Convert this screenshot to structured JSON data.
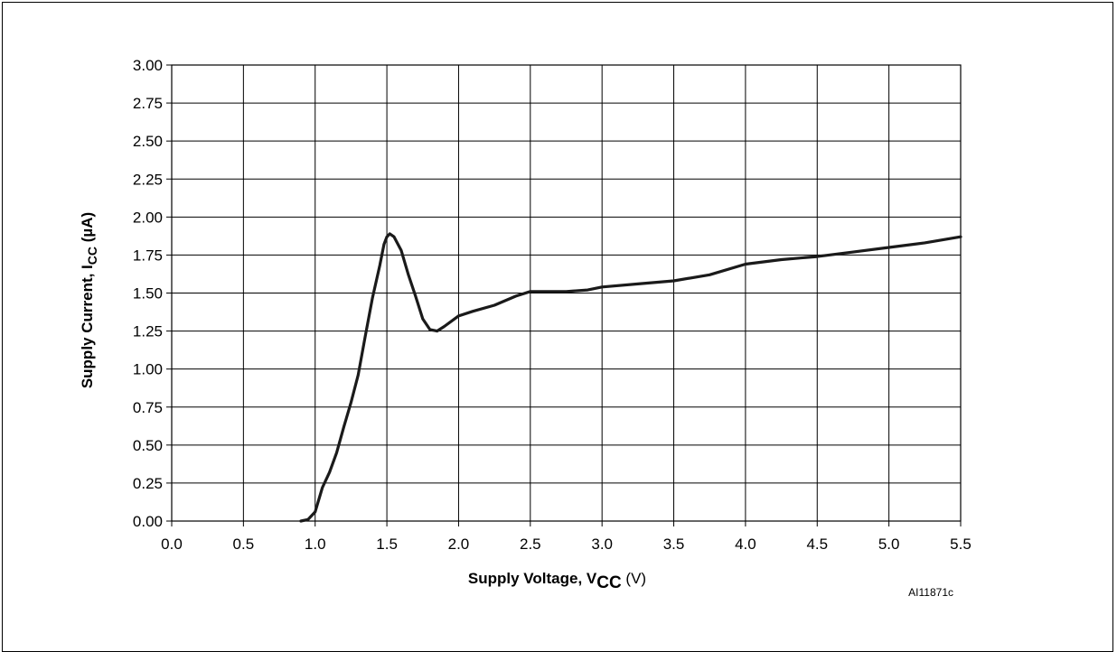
{
  "chart_data": {
    "type": "line",
    "xlabel": {
      "main": "Supply Voltage, V",
      "sub": "CC",
      "unit": " (V)"
    },
    "ylabel": {
      "main": "Supply Current, I",
      "sub": "CC",
      "unit": " (µA)"
    },
    "xlim": [
      0.0,
      5.5
    ],
    "ylim": [
      0.0,
      3.0
    ],
    "x_ticks": [
      "0.0",
      "0.5",
      "1.0",
      "1.5",
      "2.0",
      "2.5",
      "3.0",
      "3.5",
      "4.0",
      "4.5",
      "5.0",
      "5.5"
    ],
    "y_ticks": [
      "0.00",
      "0.25",
      "0.50",
      "0.75",
      "1.00",
      "1.25",
      "1.50",
      "1.75",
      "2.00",
      "2.25",
      "2.50",
      "2.75",
      "3.00"
    ],
    "grid": true,
    "series": [
      {
        "color": "#1a1a1a",
        "points": [
          [
            0.9,
            0.0
          ],
          [
            0.95,
            0.01
          ],
          [
            1.0,
            0.06
          ],
          [
            1.05,
            0.22
          ],
          [
            1.1,
            0.32
          ],
          [
            1.15,
            0.45
          ],
          [
            1.2,
            0.62
          ],
          [
            1.25,
            0.78
          ],
          [
            1.3,
            0.96
          ],
          [
            1.35,
            1.22
          ],
          [
            1.4,
            1.47
          ],
          [
            1.45,
            1.68
          ],
          [
            1.48,
            1.82
          ],
          [
            1.5,
            1.87
          ],
          [
            1.52,
            1.89
          ],
          [
            1.55,
            1.87
          ],
          [
            1.6,
            1.78
          ],
          [
            1.65,
            1.62
          ],
          [
            1.7,
            1.48
          ],
          [
            1.75,
            1.33
          ],
          [
            1.8,
            1.26
          ],
          [
            1.85,
            1.25
          ],
          [
            1.9,
            1.28
          ],
          [
            2.0,
            1.35
          ],
          [
            2.1,
            1.38
          ],
          [
            2.25,
            1.42
          ],
          [
            2.4,
            1.48
          ],
          [
            2.5,
            1.51
          ],
          [
            2.75,
            1.51
          ],
          [
            2.9,
            1.52
          ],
          [
            3.0,
            1.54
          ],
          [
            3.25,
            1.56
          ],
          [
            3.5,
            1.58
          ],
          [
            3.75,
            1.62
          ],
          [
            4.0,
            1.69
          ],
          [
            4.25,
            1.72
          ],
          [
            4.5,
            1.74
          ],
          [
            4.75,
            1.77
          ],
          [
            5.0,
            1.8
          ],
          [
            5.25,
            1.83
          ],
          [
            5.5,
            1.87
          ]
        ]
      }
    ],
    "annotations": [
      "AI11871c"
    ]
  }
}
